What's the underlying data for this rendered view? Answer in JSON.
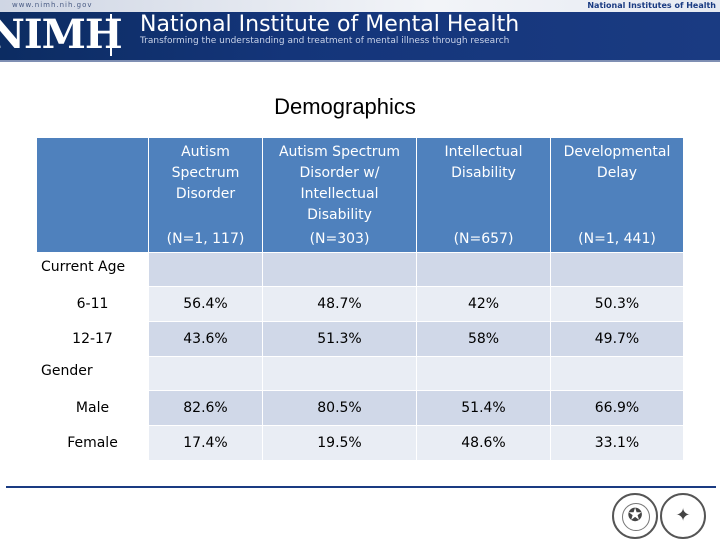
{
  "header": {
    "site_url": "www.nimh.nih.gov",
    "logo_text": "NIMH",
    "institute_name": "National Institute of Mental Health",
    "tagline": "Transforming the understanding and treatment of mental illness through research",
    "parent_org": "National Institutes of Health",
    "colors": {
      "banner": "#1a3b82",
      "header_cell": "#4f81bd",
      "row_dark": "#d0d8e8",
      "row_light": "#e9edf4"
    }
  },
  "title": "Demographics",
  "table": {
    "columns": [
      {
        "name": "Autism Spectrum Disorder",
        "name_lines": [
          "Autism",
          "Spectrum",
          "Disorder"
        ],
        "n": "(N=1, 117)"
      },
      {
        "name": "Autism Spectrum Disorder w/ Intellectual Disability",
        "name_lines": [
          "Autism Spectrum",
          "Disorder w/",
          "Intellectual",
          "Disability"
        ],
        "n": "(N=303)"
      },
      {
        "name": "Intellectual Disability",
        "name_lines": [
          "Intellectual",
          "Disability"
        ],
        "n": "(N=657)"
      },
      {
        "name": "Developmental Delay",
        "name_lines": [
          "Developmental",
          "Delay"
        ],
        "n": "(N=1, 441)"
      }
    ],
    "sections": [
      {
        "label": "Current Age",
        "rows": [
          {
            "label": "6-11",
            "values": [
              "56.4%",
              "48.7%",
              "42%",
              "50.3%"
            ]
          },
          {
            "label": "12-17",
            "values": [
              "43.6%",
              "51.3%",
              "58%",
              "49.7%"
            ]
          }
        ]
      },
      {
        "label": "Gender",
        "rows": [
          {
            "label": "Male",
            "values": [
              "82.6%",
              "80.5%",
              "51.4%",
              "66.9%"
            ]
          },
          {
            "label": "Female",
            "values": [
              "17.4%",
              "19.5%",
              "48.6%",
              "33.1%"
            ]
          }
        ]
      }
    ]
  },
  "footer": {
    "seal_icons": [
      "hhs-seal-icon",
      "hhs-eagle-icon"
    ]
  }
}
